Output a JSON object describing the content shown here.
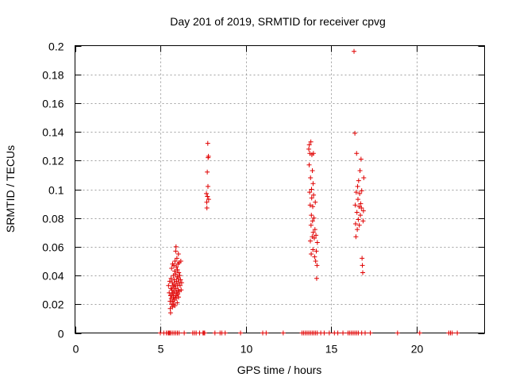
{
  "chart_data": {
    "type": "scatter",
    "title": "Day 201 of 2019, SRMTID for receiver cpvg",
    "xlabel": "GPS time / hours",
    "ylabel": "SRMTID / TECUs",
    "xlim": [
      0,
      24
    ],
    "ylim": [
      0,
      0.2
    ],
    "xticks": [
      0,
      5,
      10,
      15,
      20
    ],
    "xtick_labels": [
      "0",
      "5",
      "10",
      "15",
      "20"
    ],
    "yticks": [
      0,
      0.02,
      0.04,
      0.06,
      0.08,
      0.1,
      0.12,
      0.14,
      0.16,
      0.18,
      0.2
    ],
    "ytick_labels": [
      "0",
      "0.02",
      "0.04",
      "0.06",
      "0.08",
      "0.1",
      "0.12",
      "0.14",
      "0.16",
      "0.18",
      "0.2"
    ],
    "grid": true,
    "marker": "+",
    "marker_color": "#e00000",
    "series": [
      {
        "name": "SRMTID",
        "points": [
          [
            5.48,
            0.033
          ],
          [
            5.52,
            0.028
          ],
          [
            5.55,
            0.036
          ],
          [
            5.57,
            0.022
          ],
          [
            5.58,
            0.017
          ],
          [
            5.6,
            0.026
          ],
          [
            5.6,
            0.014
          ],
          [
            5.62,
            0.031
          ],
          [
            5.63,
            0.038
          ],
          [
            5.64,
            0.024
          ],
          [
            5.65,
            0.02
          ],
          [
            5.66,
            0.045
          ],
          [
            5.68,
            0.03
          ],
          [
            5.69,
            0.027
          ],
          [
            5.7,
            0.035
          ],
          [
            5.71,
            0.018
          ],
          [
            5.72,
            0.048
          ],
          [
            5.73,
            0.022
          ],
          [
            5.74,
            0.033
          ],
          [
            5.75,
            0.028
          ],
          [
            5.76,
            0.04
          ],
          [
            5.77,
            0.025
          ],
          [
            5.78,
            0.02
          ],
          [
            5.79,
            0.047
          ],
          [
            5.8,
            0.032
          ],
          [
            5.81,
            0.037
          ],
          [
            5.82,
            0.023
          ],
          [
            5.83,
            0.029
          ],
          [
            5.84,
            0.043
          ],
          [
            5.85,
            0.019
          ],
          [
            5.86,
            0.05
          ],
          [
            5.87,
            0.034
          ],
          [
            5.88,
            0.026
          ],
          [
            5.89,
            0.041
          ],
          [
            5.9,
            0.057
          ],
          [
            5.91,
            0.031
          ],
          [
            5.92,
            0.06
          ],
          [
            5.93,
            0.024
          ],
          [
            5.94,
            0.046
          ],
          [
            5.95,
            0.036
          ],
          [
            5.96,
            0.028
          ],
          [
            5.97,
            0.052
          ],
          [
            5.98,
            0.039
          ],
          [
            5.99,
            0.021
          ],
          [
            6.0,
            0.044
          ],
          [
            6.01,
            0.033
          ],
          [
            6.02,
            0.027
          ],
          [
            6.03,
            0.048
          ],
          [
            6.04,
            0.038
          ],
          [
            6.05,
            0.03
          ],
          [
            6.06,
            0.055
          ],
          [
            6.07,
            0.025
          ],
          [
            6.08,
            0.042
          ],
          [
            6.09,
            0.035
          ],
          [
            6.1,
            0.049
          ],
          [
            6.12,
            0.029
          ],
          [
            6.14,
            0.04
          ],
          [
            6.16,
            0.033
          ],
          [
            6.18,
            0.037
          ],
          [
            6.2,
            0.05
          ],
          [
            6.22,
            0.03
          ],
          [
            6.25,
            0.035
          ],
          [
            7.7,
            0.097
          ],
          [
            7.72,
            0.091
          ],
          [
            7.73,
            0.087
          ],
          [
            7.75,
            0.112
          ],
          [
            7.76,
            0.095
          ],
          [
            7.78,
            0.132
          ],
          [
            7.79,
            0.102
          ],
          [
            7.8,
            0.122
          ],
          [
            7.82,
            0.123
          ],
          [
            7.83,
            0.093
          ],
          [
            13.7,
            0.128
          ],
          [
            13.72,
            0.117
          ],
          [
            13.73,
            0.131
          ],
          [
            13.75,
            0.098
          ],
          [
            13.76,
            0.125
          ],
          [
            13.78,
            0.089
          ],
          [
            13.79,
            0.064
          ],
          [
            13.8,
            0.108
          ],
          [
            13.82,
            0.133
          ],
          [
            13.83,
            0.075
          ],
          [
            13.84,
            0.055
          ],
          [
            13.85,
            0.082
          ],
          [
            13.86,
            0.1
          ],
          [
            13.87,
            0.094
          ],
          [
            13.88,
            0.124
          ],
          [
            13.9,
            0.067
          ],
          [
            13.91,
            0.113
          ],
          [
            13.92,
            0.078
          ],
          [
            13.93,
            0.088
          ],
          [
            13.94,
            0.058
          ],
          [
            13.95,
            0.104
          ],
          [
            13.96,
            0.07
          ],
          [
            13.97,
            0.125
          ],
          [
            13.98,
            0.096
          ],
          [
            14.0,
            0.08
          ],
          [
            14.02,
            0.066
          ],
          [
            14.04,
            0.053
          ],
          [
            14.06,
            0.072
          ],
          [
            14.08,
            0.091
          ],
          [
            14.1,
            0.05
          ],
          [
            14.12,
            0.068
          ],
          [
            14.14,
            0.057
          ],
          [
            14.16,
            0.038
          ],
          [
            14.18,
            0.047
          ],
          [
            14.2,
            0.063
          ],
          [
            16.35,
            0.196
          ],
          [
            16.4,
            0.139
          ],
          [
            16.42,
            0.089
          ],
          [
            16.44,
            0.076
          ],
          [
            16.46,
            0.067
          ],
          [
            16.48,
            0.098
          ],
          [
            16.5,
            0.125
          ],
          [
            16.52,
            0.084
          ],
          [
            16.54,
            0.072
          ],
          [
            16.56,
            0.102
          ],
          [
            16.58,
            0.093
          ],
          [
            16.6,
            0.079
          ],
          [
            16.62,
            0.106
          ],
          [
            16.64,
            0.088
          ],
          [
            16.66,
            0.075
          ],
          [
            16.68,
            0.097
          ],
          [
            16.7,
            0.113
          ],
          [
            16.72,
            0.082
          ],
          [
            16.74,
            0.09
          ],
          [
            16.76,
            0.121
          ],
          [
            16.78,
            0.087
          ],
          [
            16.8,
            0.099
          ],
          [
            16.82,
            0.052
          ],
          [
            16.84,
            0.047
          ],
          [
            16.86,
            0.042
          ],
          [
            16.88,
            0.078
          ],
          [
            16.9,
            0.085
          ],
          [
            16.92,
            0.108
          ]
        ]
      }
    ],
    "zero_points_x": [
      5.0,
      5.2,
      5.35,
      5.45,
      5.5,
      5.55,
      5.6,
      5.7,
      5.8,
      5.9,
      6.0,
      6.1,
      6.4,
      6.9,
      7.0,
      7.1,
      7.3,
      7.5,
      7.55,
      7.6,
      8.2,
      8.5,
      8.6,
      8.8,
      9.7,
      11.0,
      11.2,
      12.2,
      13.3,
      13.4,
      13.5,
      13.6,
      13.7,
      13.8,
      13.9,
      14.0,
      14.1,
      14.2,
      14.4,
      14.6,
      14.9,
      15.2,
      15.4,
      15.7,
      16.0,
      16.1,
      16.2,
      16.3,
      16.4,
      16.5,
      16.6,
      16.8,
      17.0,
      17.3,
      18.9,
      20.2,
      21.9,
      22.0,
      22.1,
      22.4
    ]
  }
}
